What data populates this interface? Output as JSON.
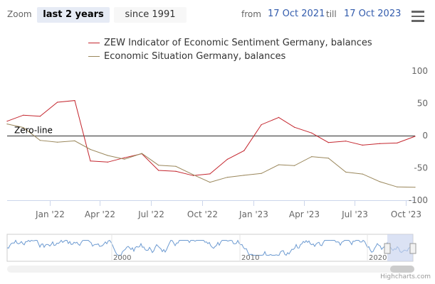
{
  "range_selector": {
    "zoom_label": "Zoom",
    "buttons": [
      "last 2 years",
      "since 1991"
    ],
    "active_button": 0,
    "from_label": "from",
    "from_date": "17 Oct 2021",
    "till_label": "till",
    "till_date": "17 Oct 2023"
  },
  "menu": {
    "icon": "hamburger-menu-icon"
  },
  "credits": "Highcharts.com",
  "zero_line_label": "Zero-line",
  "colors": {
    "series1": "#c4262e",
    "series2": "#9a875b",
    "navigator_line": "#6c9ad1",
    "navigator_mask": "#c7d2ee"
  },
  "chart_data": {
    "type": "line",
    "x": [
      "2021-10-17",
      "2021-11-15",
      "2021-12-15",
      "2022-01-15",
      "2022-02-15",
      "2022-03-15",
      "2022-04-15",
      "2022-05-15",
      "2022-06-15",
      "2022-07-15",
      "2022-08-15",
      "2022-09-15",
      "2022-10-15",
      "2022-11-15",
      "2022-12-15",
      "2023-01-15",
      "2023-02-15",
      "2023-03-15",
      "2023-04-15",
      "2023-05-15",
      "2023-06-15",
      "2023-07-15",
      "2023-08-15",
      "2023-09-15",
      "2023-10-17"
    ],
    "series": [
      {
        "name": "ZEW Indicator of Economic Sentiment Germany, balances",
        "values": [
          22.3,
          31.7,
          29.9,
          51.7,
          54.3,
          -39.3,
          -41.0,
          -34.3,
          -28.0,
          -53.8,
          -55.3,
          -61.9,
          -59.2,
          -36.7,
          -23.3,
          16.9,
          28.1,
          13.0,
          4.1,
          -10.7,
          -8.5,
          -14.7,
          -12.3,
          -11.4,
          -1.1
        ]
      },
      {
        "name": "Economic Situation Germany, balances",
        "values": [
          18.0,
          12.5,
          -7.4,
          -10.2,
          -8.1,
          -21.4,
          -30.8,
          -36.5,
          -27.6,
          -45.8,
          -47.6,
          -60.5,
          -72.2,
          -64.5,
          -61.4,
          -58.6,
          -45.1,
          -46.5,
          -32.5,
          -34.8,
          -56.5,
          -59.5,
          -71.3,
          -79.4,
          -79.9
        ]
      }
    ],
    "yticks": [
      "100",
      "50",
      "0",
      "-50",
      "-100"
    ],
    "ylim": [
      -100,
      100
    ],
    "xticks": [
      "Jan '22",
      "Apr '22",
      "Jul '22",
      "Oct '22",
      "Jan '23",
      "Apr '23",
      "Jul '23",
      "Oct '23"
    ],
    "xlim": [
      "2021-10-17",
      "2023-10-17"
    ],
    "plot_lines": [
      {
        "value": 0,
        "label": "Zero-line"
      }
    ],
    "navigator": {
      "labels": [
        "2000",
        "2010",
        "2020"
      ],
      "range": [
        "1991",
        "2023"
      ]
    },
    "legend_position": "top-center",
    "y_axis_side": "right"
  }
}
